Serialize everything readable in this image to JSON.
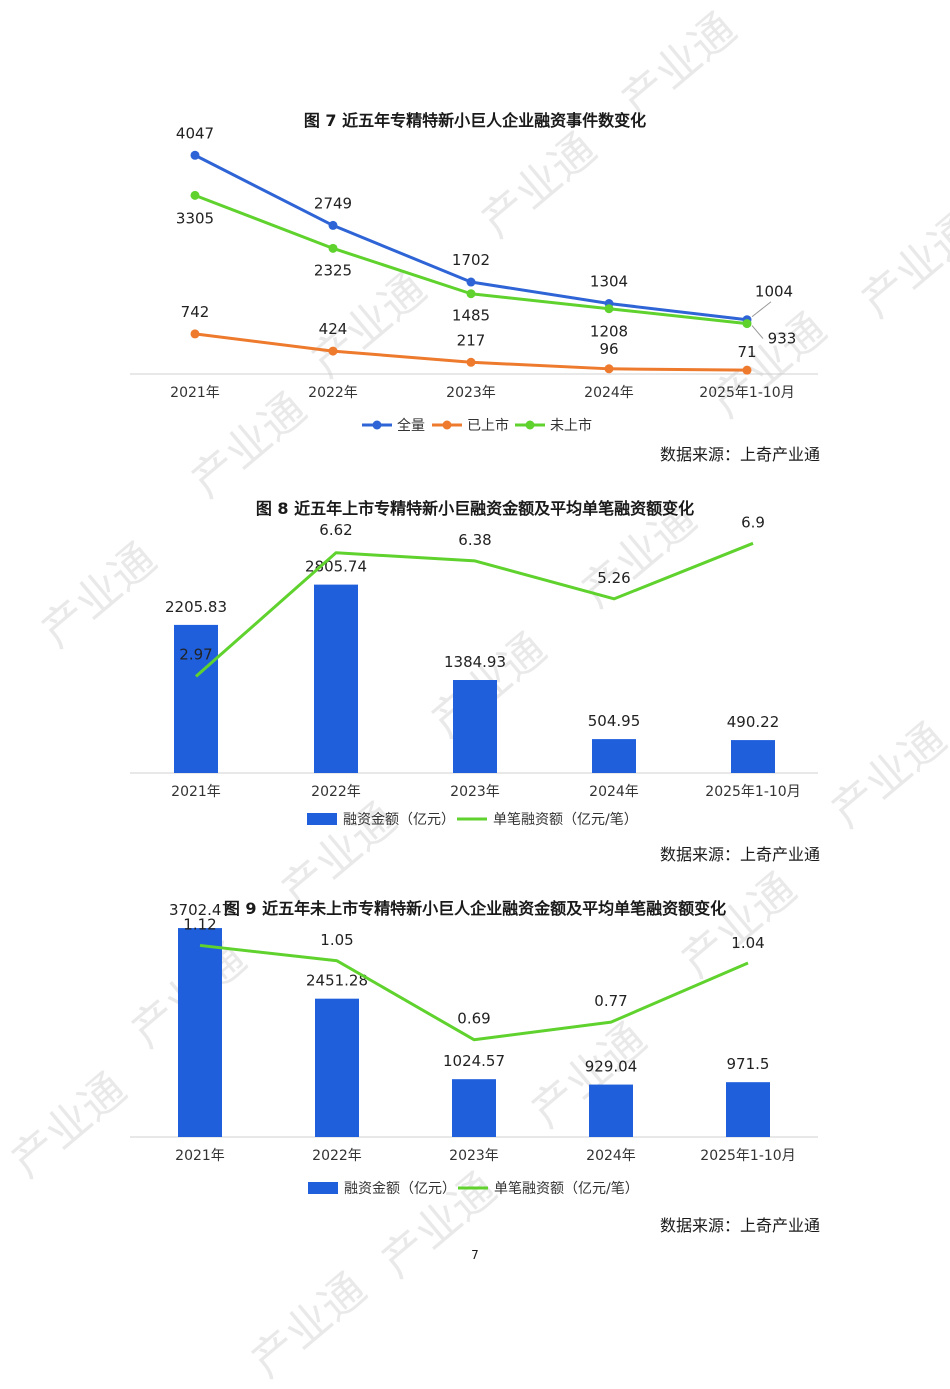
{
  "page_number": "7",
  "watermark_text": "产业通",
  "chart_data": [
    {
      "type": "line",
      "title": "图 7  近五年专精特新小巨人企业融资事件数变化",
      "categories": [
        "2021年",
        "2022年",
        "2023年",
        "2024年",
        "2025年1-10月"
      ],
      "series": [
        {
          "name": "全量",
          "color": "#2e64d6",
          "values": [
            4047,
            2749,
            1702,
            1304,
            1004
          ]
        },
        {
          "name": "已上市",
          "color": "#ee7a2e",
          "values": [
            742,
            424,
            217,
            96,
            71
          ]
        },
        {
          "name": "未上市",
          "color": "#5fd22e",
          "values": [
            3305,
            2325,
            1485,
            1208,
            933
          ]
        }
      ],
      "ylim": [
        0,
        4200
      ],
      "legend_position": "bottom",
      "grid": false,
      "source": "数据来源：上奇产业通"
    },
    {
      "type": "bar",
      "title": "图 8  近五年上市专精特新小巨融资金额及平均单笔融资额变化",
      "categories": [
        "2021年",
        "2022年",
        "2023年",
        "2024年",
        "2025年1-10月"
      ],
      "series": [
        {
          "name": "融资金额（亿元）",
          "type": "bar",
          "color": "#1f5fdc",
          "values": [
            2205.83,
            2805.74,
            1384.93,
            504.95,
            490.22
          ]
        },
        {
          "name": "单笔融资额（亿元/笔）",
          "type": "line",
          "color": "#5fd22e",
          "values": [
            2.97,
            6.62,
            6.38,
            5.26,
            6.9
          ]
        }
      ],
      "ylim": [
        0,
        3500
      ],
      "y2lim": [
        0,
        7.5
      ],
      "legend_position": "bottom",
      "grid": false,
      "source": "数据来源：上奇产业通"
    },
    {
      "type": "bar",
      "title": "图 9  近五年未上市专精特新小巨人企业融资金额及平均单笔融资额变化",
      "categories": [
        "2021年",
        "2022年",
        "2023年",
        "2024年",
        "2025年1-10月"
      ],
      "series": [
        {
          "name": "融资金额（亿元）",
          "type": "bar",
          "color": "#1f5fdc",
          "values": [
            3702.47,
            2451.28,
            1024.57,
            929.04,
            971.5
          ]
        },
        {
          "name": "单笔融资额（亿元/笔）",
          "type": "line",
          "color": "#5fd22e",
          "values": [
            1.12,
            1.05,
            0.69,
            0.77,
            1.04
          ]
        }
      ],
      "ylim": [
        0,
        4200
      ],
      "y2lim": [
        0,
        1.35
      ],
      "legend_position": "bottom",
      "grid": false,
      "source": "数据来源：上奇产业通"
    }
  ]
}
